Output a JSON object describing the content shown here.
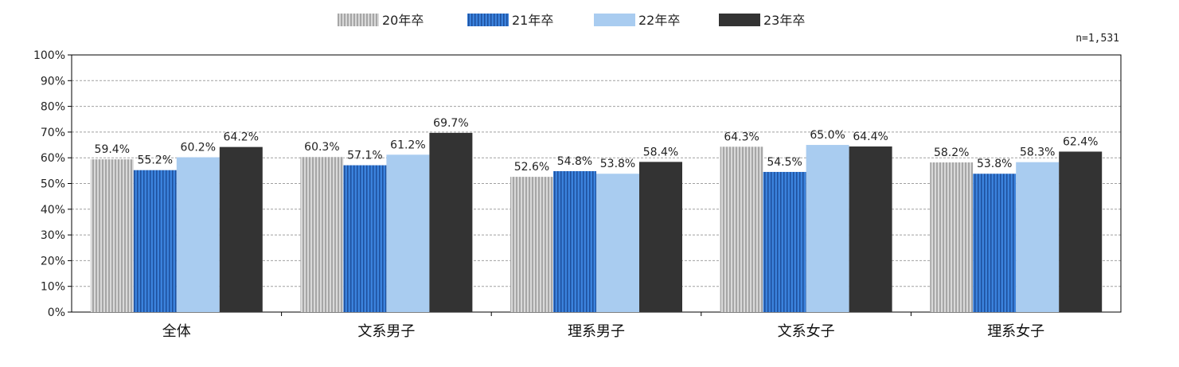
{
  "chart_data": {
    "type": "bar",
    "title": "",
    "xlabel": "",
    "ylabel": "",
    "sample_note": "n=1,531",
    "ylim": [
      0,
      100
    ],
    "y_ticks": [
      "0%",
      "10%",
      "20%",
      "30%",
      "40%",
      "50%",
      "60%",
      "70%",
      "80%",
      "90%",
      "100%"
    ],
    "grid": true,
    "legend_position": "top-center",
    "categories": [
      "全体",
      "文系男子",
      "理系男子",
      "文系女子",
      "理系女子"
    ],
    "series": [
      {
        "name": "20年卒",
        "color": "#c8c8c8",
        "pattern": "vertical-stripes-gray",
        "values": [
          59.4,
          60.3,
          52.6,
          64.3,
          58.2
        ],
        "labels": [
          "59.4%",
          "60.3%",
          "52.6%",
          "64.3%",
          "58.2%"
        ]
      },
      {
        "name": "21年卒",
        "color": "#2f74d0",
        "pattern": "vertical-stripes-blue",
        "values": [
          55.2,
          57.1,
          54.8,
          54.5,
          53.8
        ],
        "labels": [
          "55.2%",
          "57.1%",
          "54.8%",
          "54.5%",
          "53.8%"
        ]
      },
      {
        "name": "22年卒",
        "color": "#a9ccf0",
        "pattern": "solid",
        "values": [
          60.2,
          61.2,
          53.8,
          65.0,
          58.3
        ],
        "labels": [
          "60.2%",
          "61.2%",
          "53.8%",
          "65.0%",
          "58.3%"
        ]
      },
      {
        "name": "23年卒",
        "color": "#333333",
        "pattern": "solid",
        "values": [
          64.2,
          69.7,
          58.4,
          64.4,
          62.4
        ],
        "labels": [
          "64.2%",
          "69.7%",
          "58.4%",
          "64.4%",
          "62.4%"
        ]
      }
    ]
  }
}
